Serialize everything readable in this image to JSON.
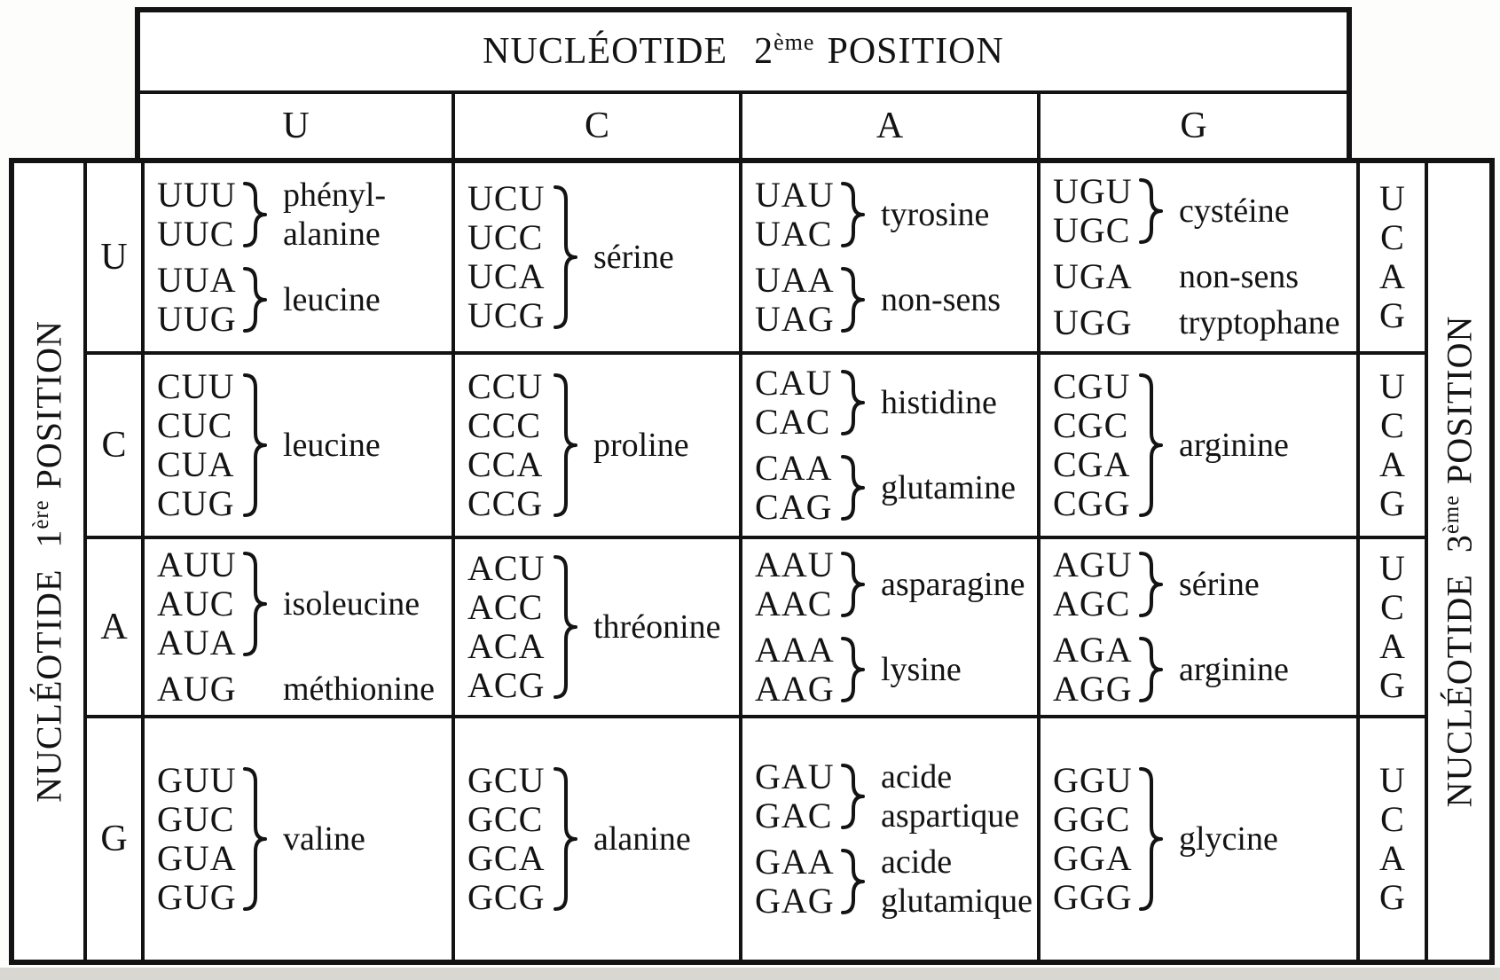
{
  "colors": {
    "ink": "#131313",
    "paper": "#ffffff",
    "scan_edge": "#d9d7d2"
  },
  "header": {
    "title": {
      "word1": "NUCLÉOTIDE",
      "num": "2",
      "sup": "ème",
      "word2": "POSITION"
    },
    "columns": [
      "U",
      "C",
      "A",
      "G"
    ]
  },
  "left_axis": {
    "word1": "NUCLÉOTIDE",
    "num": "1",
    "sup": "ère",
    "word2": "POSITION"
  },
  "right_axis": {
    "word1": "NUCLÉOTIDE",
    "num": "3",
    "sup": "ème",
    "word2": "POSITION"
  },
  "third_position_letters": [
    "U",
    "C",
    "A",
    "G"
  ],
  "rows": [
    {
      "letter": "U",
      "cells": [
        {
          "groups": [
            {
              "codons": [
                "UUU",
                "UUC"
              ],
              "brace": true,
              "label": [
                "phényl-",
                "alanine"
              ]
            },
            {
              "codons": [
                "UUA",
                "UUG"
              ],
              "brace": true,
              "label": [
                "leucine"
              ]
            }
          ]
        },
        {
          "groups": [
            {
              "codons": [
                "UCU",
                "UCC",
                "UCA",
                "UCG"
              ],
              "brace": true,
              "label": [
                "sérine"
              ]
            }
          ]
        },
        {
          "groups": [
            {
              "codons": [
                "UAU",
                "UAC"
              ],
              "brace": true,
              "label": [
                "tyrosine"
              ]
            },
            {
              "codons": [
                "UAA",
                "UAG"
              ],
              "brace": true,
              "label": [
                "non-sens"
              ]
            }
          ]
        },
        {
          "groups": [
            {
              "codons": [
                "UGU",
                "UGC"
              ],
              "brace": true,
              "label": [
                "cystéine"
              ]
            },
            {
              "codons": [
                "UGA"
              ],
              "brace": false,
              "label": [
                "non-sens"
              ]
            },
            {
              "codons": [
                "UGG"
              ],
              "brace": false,
              "label": [
                "tryptophane"
              ]
            }
          ]
        }
      ]
    },
    {
      "letter": "C",
      "cells": [
        {
          "groups": [
            {
              "codons": [
                "CUU",
                "CUC",
                "CUA",
                "CUG"
              ],
              "brace": true,
              "label": [
                "leucine"
              ]
            }
          ]
        },
        {
          "groups": [
            {
              "codons": [
                "CCU",
                "CCC",
                "CCA",
                "CCG"
              ],
              "brace": true,
              "label": [
                "proline"
              ]
            }
          ]
        },
        {
          "groups": [
            {
              "codons": [
                "CAU",
                "CAC"
              ],
              "brace": true,
              "label": [
                "histidine"
              ]
            },
            {
              "codons": [
                "CAA",
                "CAG"
              ],
              "brace": true,
              "label": [
                "glutamine"
              ]
            }
          ]
        },
        {
          "groups": [
            {
              "codons": [
                "CGU",
                "CGC",
                "CGA",
                "CGG"
              ],
              "brace": true,
              "label": [
                "arginine"
              ]
            }
          ]
        }
      ]
    },
    {
      "letter": "A",
      "cells": [
        {
          "groups": [
            {
              "codons": [
                "AUU",
                "AUC",
                "AUA"
              ],
              "brace": true,
              "label": [
                "isoleucine"
              ]
            },
            {
              "codons": [
                "AUG"
              ],
              "brace": false,
              "label": [
                "méthionine"
              ]
            }
          ]
        },
        {
          "groups": [
            {
              "codons": [
                "ACU",
                "ACC",
                "ACA",
                "ACG"
              ],
              "brace": true,
              "label": [
                "thréonine"
              ]
            }
          ]
        },
        {
          "groups": [
            {
              "codons": [
                "AAU",
                "AAC"
              ],
              "brace": true,
              "label": [
                "asparagine"
              ]
            },
            {
              "codons": [
                "AAA",
                "AAG"
              ],
              "brace": true,
              "label": [
                "lysine"
              ]
            }
          ]
        },
        {
          "groups": [
            {
              "codons": [
                "AGU",
                "AGC"
              ],
              "brace": true,
              "label": [
                "sérine"
              ]
            },
            {
              "codons": [
                "AGA",
                "AGG"
              ],
              "brace": true,
              "label": [
                "arginine"
              ]
            }
          ]
        }
      ]
    },
    {
      "letter": "G",
      "cells": [
        {
          "groups": [
            {
              "codons": [
                "GUU",
                "GUC",
                "GUA",
                "GUG"
              ],
              "brace": true,
              "label": [
                "valine"
              ]
            }
          ]
        },
        {
          "groups": [
            {
              "codons": [
                "GCU",
                "GCC",
                "GCA",
                "GCG"
              ],
              "brace": true,
              "label": [
                "alanine"
              ]
            }
          ]
        },
        {
          "groups": [
            {
              "codons": [
                "GAU",
                "GAC"
              ],
              "brace": true,
              "label": [
                "acide",
                "aspartique"
              ]
            },
            {
              "codons": [
                "GAA",
                "GAG"
              ],
              "brace": true,
              "label": [
                "acide",
                "glutamique"
              ]
            }
          ]
        },
        {
          "groups": [
            {
              "codons": [
                "GGU",
                "GGC",
                "GGA",
                "GGG"
              ],
              "brace": true,
              "label": [
                "glycine"
              ]
            }
          ]
        }
      ]
    }
  ]
}
